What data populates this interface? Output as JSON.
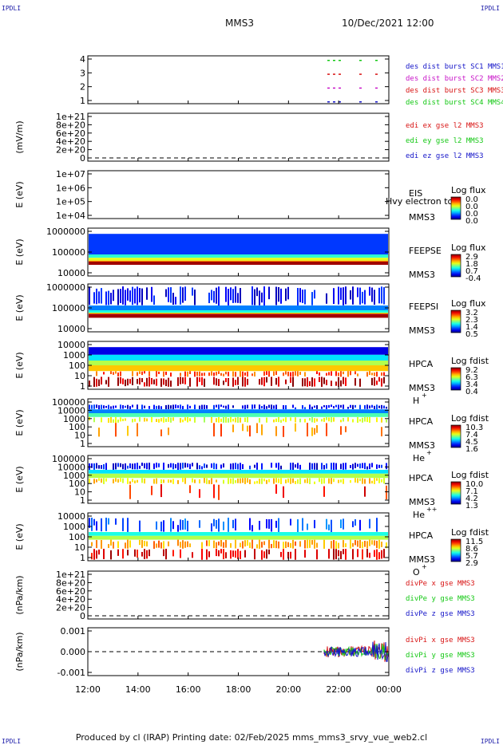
{
  "corners": {
    "tl": "IPDLI",
    "tr": "IPDLI",
    "bl": "IPDLI",
    "br": "IPDLI"
  },
  "header": {
    "spacecraft": "MMS3",
    "datetime": "10/Dec/2021 12:00"
  },
  "footer": "Produced by cl (IRAP)    Printing date: 02/Feb/2025    mms_mms3_srvy_vue_web2.cl",
  "chart_data": {
    "type": "stacked-panels",
    "x_ticks": [
      "12:00",
      "14:00",
      "16:00",
      "18:00",
      "20:00",
      "22:00",
      "00:00"
    ],
    "panels": [
      {
        "id": "burst",
        "type": "availability",
        "y_ticks": [
          "4",
          "3",
          "2",
          "1"
        ],
        "legend": [
          {
            "text": "des dist burst SC1 MMS1",
            "color": "#1414c8"
          },
          {
            "text": "des dist burst SC2 MMS2",
            "color": "#c814c8"
          },
          {
            "text": "des dist burst SC3 MMS3",
            "color": "#d81414"
          },
          {
            "text": "des dist burst SC4 MMS4",
            "color": "#14c814"
          }
        ]
      },
      {
        "id": "edi",
        "type": "line",
        "ylabel": "(mV/m)",
        "y_ticks": [
          "1e+21",
          "8e+20",
          "6e+20",
          "4e+20",
          "2e+20",
          "0"
        ],
        "legend": [
          {
            "text": "edi ex gse l2 MMS3",
            "color": "#d81414"
          },
          {
            "text": "edi ey gse l2 MMS3",
            "color": "#14c814"
          },
          {
            "text": "edi ez gse l2 MMS3",
            "color": "#1414c8"
          }
        ]
      },
      {
        "id": "eis",
        "type": "spectrogram",
        "ylabel": "E (eV)",
        "y_ticks": [
          "1e+07",
          "1e+06",
          "1e+05",
          "1e+04"
        ],
        "labels": [
          "EIS",
          "MMS3"
        ],
        "overlay": "Hvy electron tc",
        "cbar": {
          "title": "Log flux",
          "ticks": [
            "0.0",
            "0.0",
            "0.0",
            "0.0"
          ]
        }
      },
      {
        "id": "feepse",
        "type": "spectrogram",
        "ylabel": "E (eV)",
        "y_ticks": [
          "1000000",
          "100000",
          "10000"
        ],
        "labels": [
          "FEEPSE",
          "MMS3"
        ],
        "cbar": {
          "title": "Log flux",
          "ticks": [
            "2.9",
            "1.8",
            "0.7",
            "-0.4"
          ]
        }
      },
      {
        "id": "feepsi",
        "type": "spectrogram",
        "ylabel": "E (eV)",
        "y_ticks": [
          "1000000",
          "100000",
          "10000"
        ],
        "labels": [
          "FEEPSI",
          "MMS3"
        ],
        "cbar": {
          "title": "Log flux",
          "ticks": [
            "3.2",
            "2.3",
            "1.4",
            "0.5"
          ]
        }
      },
      {
        "id": "hpca_h",
        "type": "spectrogram",
        "ylabel": "E (eV)",
        "y_ticks": [
          "10000",
          "1000",
          "100",
          "10",
          "1"
        ],
        "labels": [
          "HPCA",
          "MMS3"
        ],
        "species": "H",
        "charge": "+",
        "cbar": {
          "title": "Log fdist",
          "ticks": [
            "9.2",
            "6.3",
            "3.4",
            "0.4"
          ]
        }
      },
      {
        "id": "hpca_he",
        "type": "spectrogram",
        "ylabel": "E (eV)",
        "y_ticks": [
          "100000",
          "10000",
          "1000",
          "100",
          "10",
          "1"
        ],
        "labels": [
          "HPCA",
          "MMS3"
        ],
        "species": "He",
        "charge": "+",
        "cbar": {
          "title": "Log fdist",
          "ticks": [
            "10.3",
            "7.4",
            "4.5",
            "1.6"
          ]
        }
      },
      {
        "id": "hpca_hepp",
        "type": "spectrogram",
        "ylabel": "E (eV)",
        "y_ticks": [
          "100000",
          "10000",
          "1000",
          "100",
          "10",
          "1"
        ],
        "labels": [
          "HPCA",
          "MMS3"
        ],
        "species": "He",
        "charge": "++",
        "cbar": {
          "title": "Log fdist",
          "ticks": [
            "10.0",
            "7.1",
            "4.2",
            "1.3"
          ]
        }
      },
      {
        "id": "hpca_o",
        "type": "spectrogram",
        "ylabel": "E (eV)",
        "y_ticks": [
          "10000",
          "1000",
          "100",
          "10",
          "1"
        ],
        "labels": [
          "HPCA",
          "MMS3"
        ],
        "species": "O",
        "charge": "+",
        "cbar": {
          "title": "Log fdist",
          "ticks": [
            "11.5",
            "8.6",
            "5.7",
            "2.9"
          ]
        }
      },
      {
        "id": "divpe",
        "type": "line",
        "ylabel": "(nPa/km)",
        "y_ticks": [
          "1e+21",
          "8e+20",
          "6e+20",
          "4e+20",
          "2e+20",
          "0"
        ],
        "legend": [
          {
            "text": "divPe x gse MMS3",
            "color": "#d81414"
          },
          {
            "text": "divPe y gse MMS3",
            "color": "#14c814"
          },
          {
            "text": "divPe z gse MMS3",
            "color": "#1414c8"
          }
        ]
      },
      {
        "id": "divpi",
        "type": "line",
        "ylabel": "(nPa/km)",
        "y_ticks": [
          "0.001",
          "0.000",
          "-0.001"
        ],
        "legend": [
          {
            "text": "divPi x gse MMS3",
            "color": "#d81414"
          },
          {
            "text": "divPi y gse MMS3",
            "color": "#14c814"
          },
          {
            "text": "divPi z gse MMS3",
            "color": "#1414c8"
          }
        ]
      }
    ]
  }
}
